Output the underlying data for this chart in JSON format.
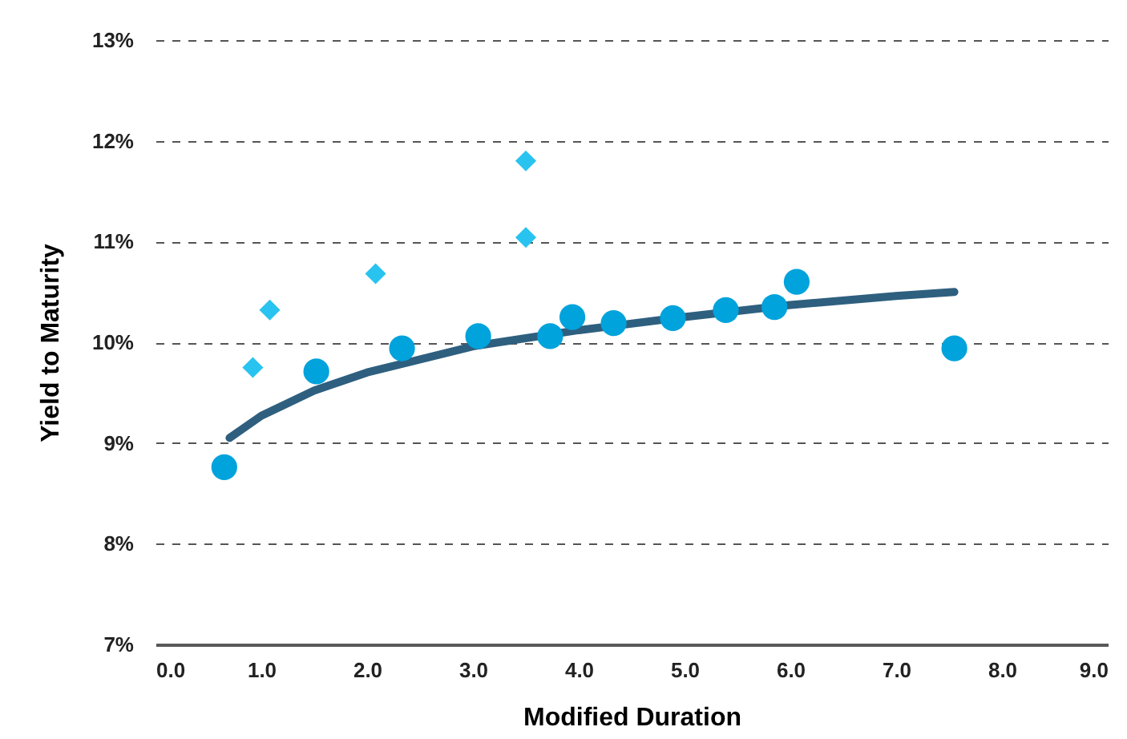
{
  "chart_data": {
    "type": "scatter",
    "xlabel": "Modified Duration",
    "ylabel": "Yield to Maturity",
    "xlim": [
      0,
      9
    ],
    "ylim": [
      7,
      13
    ],
    "xticks": [
      {
        "value": 0,
        "label": "0.0"
      },
      {
        "value": 1,
        "label": "1.0"
      },
      {
        "value": 2,
        "label": "2.0"
      },
      {
        "value": 3,
        "label": "3.0"
      },
      {
        "value": 4,
        "label": "4.0"
      },
      {
        "value": 5,
        "label": "5.0"
      },
      {
        "value": 6,
        "label": "6.0"
      },
      {
        "value": 7,
        "label": "7.0"
      },
      {
        "value": 8,
        "label": "8.0"
      },
      {
        "value": 9,
        "label": "9.0"
      }
    ],
    "yticks": [
      {
        "value": 7,
        "label": "7%"
      },
      {
        "value": 8,
        "label": "8%"
      },
      {
        "value": 9,
        "label": "9%"
      },
      {
        "value": 10,
        "label": "10%"
      },
      {
        "value": 11,
        "label": "11%"
      },
      {
        "value": 12,
        "label": "12%"
      },
      {
        "value": 13,
        "label": "13%"
      }
    ],
    "grid": "y",
    "series": [
      {
        "type": "line",
        "color": "#2e5f7f",
        "marker": "none",
        "x": [
          0.7,
          1,
          1.5,
          2,
          3,
          4,
          5,
          6,
          7,
          7.55
        ],
        "values": [
          9.05,
          9.27,
          9.52,
          9.7,
          9.96,
          10.12,
          10.25,
          10.37,
          10.46,
          10.5
        ]
      },
      {
        "color": "#00a3dc",
        "marker": "circle",
        "x": [
          0.65,
          1.52,
          2.33,
          3.05,
          3.73,
          3.94,
          4.33,
          4.89,
          5.39,
          5.85,
          6.06,
          7.55
        ],
        "values": [
          8.76,
          9.71,
          9.94,
          10.06,
          10.06,
          10.25,
          10.19,
          10.24,
          10.32,
          10.35,
          10.6,
          9.94
        ]
      },
      {
        "color": "#29c3f0",
        "marker": "diamond",
        "x": [
          0.92,
          1.08,
          2.08,
          3.5,
          3.5
        ],
        "values": [
          9.75,
          10.32,
          10.68,
          11.8,
          11.04
        ]
      }
    ]
  }
}
